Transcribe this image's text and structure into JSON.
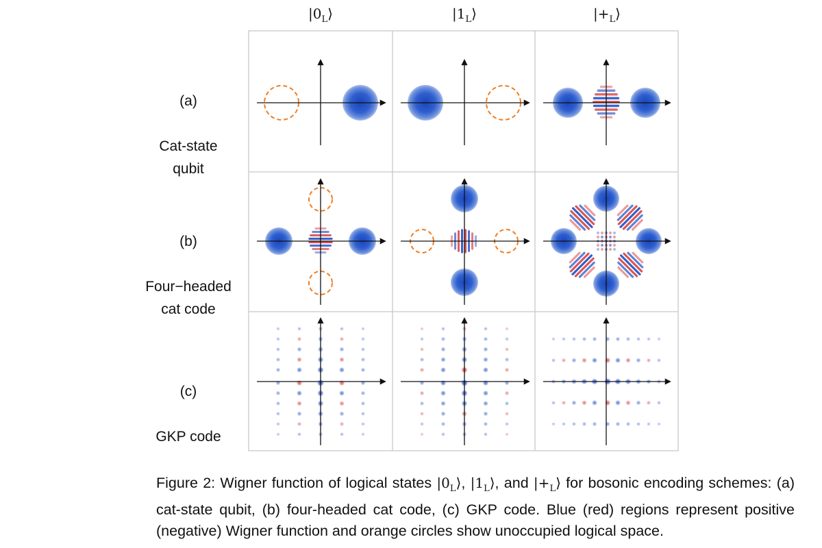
{
  "columns": [
    {
      "pre": "|",
      "main": "0",
      "sub": "L",
      "post": "⟩"
    },
    {
      "pre": "|",
      "main": "1",
      "sub": "L",
      "post": "⟩"
    },
    {
      "pre": "|",
      "main": "+",
      "sub": "L",
      "post": "⟩"
    }
  ],
  "rows": [
    {
      "tag": "(a)",
      "label": "Cat-state\nqubit"
    },
    {
      "tag": "(b)",
      "label": "Four−headed\ncat code"
    },
    {
      "tag": "(c)",
      "label": "GKP code"
    }
  ],
  "caption": {
    "line1_a": "Figure 2: Wigner function of logical states ",
    "line1_b": ", ",
    "line1_c": ", and ",
    "line1_d": " for bosonic encoding schemes: (a)",
    "line2": "cat-state qubit, (b) four-headed cat code, (c) GKP code.  Blue (red) regions represent positive",
    "line3": "(negative) Wigner function and orange circles show unoccupied logical space."
  },
  "colors": {
    "positive": "#1f4fc4",
    "negative": "#d23a3a",
    "unoccupied": "#ef7d22",
    "grid": "#c8c8c8"
  }
}
